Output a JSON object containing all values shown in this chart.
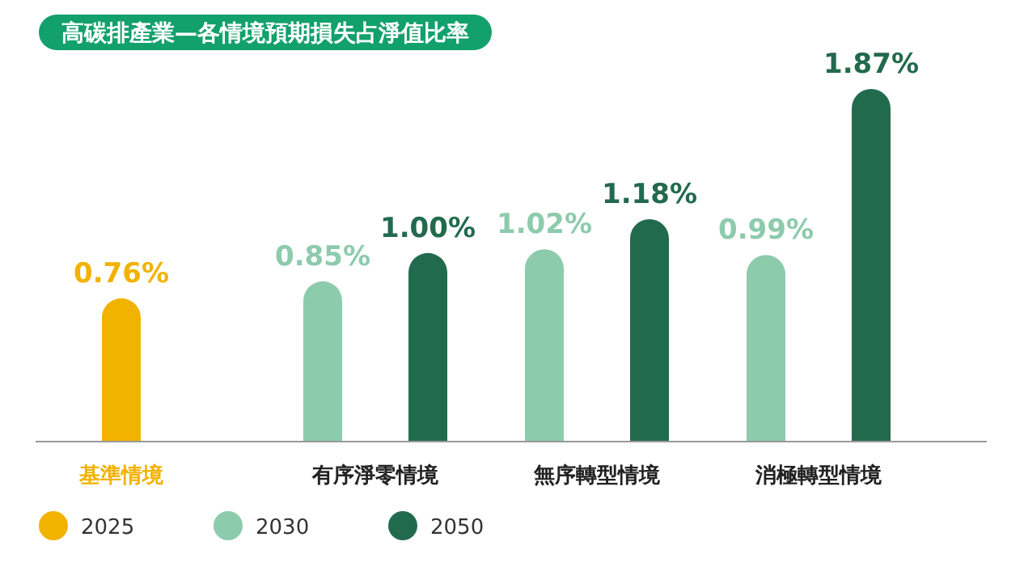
{
  "chart_data": {
    "type": "bar",
    "title": "高碳排產業—各情境預期損失占淨值比率",
    "categories": [
      "基準情境",
      "有序淨零情境",
      "無序轉型情境",
      "消極轉型情境"
    ],
    "series": [
      {
        "name": "2025",
        "color": "#f2b200",
        "values": [
          0.76,
          null,
          null,
          null
        ],
        "value_labels": [
          "0.76%",
          null,
          null,
          null
        ]
      },
      {
        "name": "2030",
        "color": "#8dcbad",
        "values": [
          null,
          0.85,
          1.02,
          0.99
        ],
        "value_labels": [
          null,
          "0.85%",
          "1.02%",
          "0.99%"
        ]
      },
      {
        "name": "2050",
        "color": "#226a4e",
        "values": [
          null,
          1.0,
          1.18,
          1.87
        ],
        "value_labels": [
          null,
          "1.00%",
          "1.18%",
          "1.87%"
        ]
      }
    ],
    "legend": "bottom",
    "grid": false
  }
}
